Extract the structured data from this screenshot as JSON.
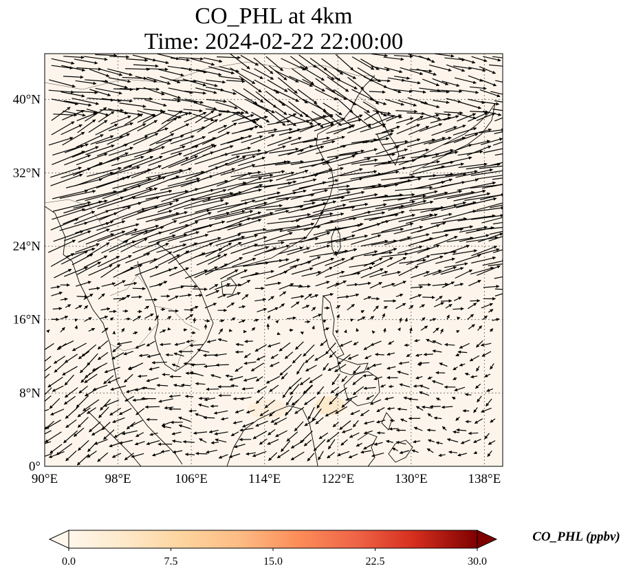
{
  "title": {
    "line1": "CO_PHL at 4km",
    "line2": "Time: 2024-02-22 22:00:00"
  },
  "map": {
    "lon_range": [
      90,
      140
    ],
    "lat_range": [
      0,
      45
    ],
    "background_color": "#fdf5eb",
    "coastline_color": "#000000",
    "gridline_style": "dotted",
    "gridline_color": "#777777",
    "lon_ticks": [
      {
        "value": 90,
        "label": "90°E"
      },
      {
        "value": 98,
        "label": "98°E"
      },
      {
        "value": 106,
        "label": "106°E"
      },
      {
        "value": 114,
        "label": "114°E"
      },
      {
        "value": 122,
        "label": "122°E"
      },
      {
        "value": 130,
        "label": "130°E"
      },
      {
        "value": 138,
        "label": "138°E"
      }
    ],
    "lat_ticks": [
      {
        "value": 0,
        "label": "0°"
      },
      {
        "value": 8,
        "label": "8°N"
      },
      {
        "value": 16,
        "label": "16°N"
      },
      {
        "value": 24,
        "label": "24°N"
      },
      {
        "value": 32,
        "label": "32°N"
      },
      {
        "value": 40,
        "label": "40°N"
      }
    ]
  },
  "colorbar": {
    "label": "CO_PHL (ppbv)",
    "min": 0,
    "max": 30,
    "colormap": "OrRd",
    "extend": "both",
    "ticks": [
      {
        "value": 0,
        "label": "0.0"
      },
      {
        "value": 7.5,
        "label": "7.5"
      },
      {
        "value": 15,
        "label": "15.0"
      },
      {
        "value": 22.5,
        "label": "22.5"
      },
      {
        "value": 30,
        "label": "30.0"
      }
    ]
  }
}
